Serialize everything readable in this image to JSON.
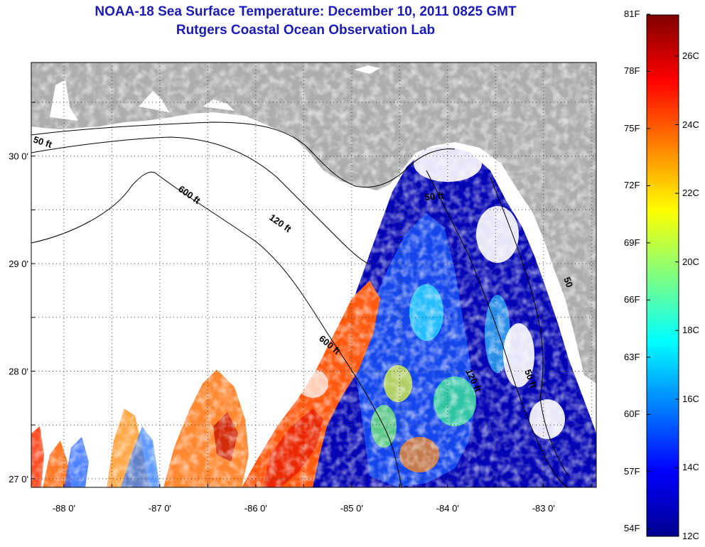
{
  "header": {
    "title": "NOAA-18 Sea Surface Temperature:  December 10, 2011 0825 GMT",
    "subtitle": "Rutgers Coastal Ocean Observation Lab"
  },
  "axes": {
    "lon_ticks": [
      "-88 0'",
      "-87 0'",
      "-86 0'",
      "-85 0'",
      "-84 0'",
      "-83 0'"
    ],
    "lat_ticks": [
      "30 0'",
      "29 0'",
      "28 0'",
      "27 0'"
    ],
    "lon_values": [
      -88,
      -87,
      -86,
      -85,
      -84,
      -83
    ],
    "lat_values": [
      30,
      29,
      28,
      27
    ],
    "lon_range": [
      -88.34,
      -82.45
    ],
    "lat_range": [
      26.92,
      30.87
    ]
  },
  "contours": [
    {
      "label": "50 ft"
    },
    {
      "label": "120 ft"
    },
    {
      "label": "600 ft"
    },
    {
      "label": "600 ft"
    },
    {
      "label": "50 ft"
    },
    {
      "label": "120 ft"
    },
    {
      "label": "50 ft"
    },
    {
      "label": "50"
    }
  ],
  "colorbar": {
    "fahrenheit": [
      "81F",
      "78F",
      "75F",
      "72F",
      "69F",
      "66F",
      "63F",
      "60F",
      "57F",
      "54F"
    ],
    "celsius": [
      "26C",
      "24C",
      "22C",
      "20C",
      "18C",
      "16C",
      "14C",
      "12C"
    ],
    "min_c": 12,
    "max_c": 27.2
  },
  "colors": {
    "title": "#1b1bb8",
    "land": "#adadad",
    "no_data": "#ffffff",
    "cold": "#00009b",
    "warm": "#ff3000"
  }
}
